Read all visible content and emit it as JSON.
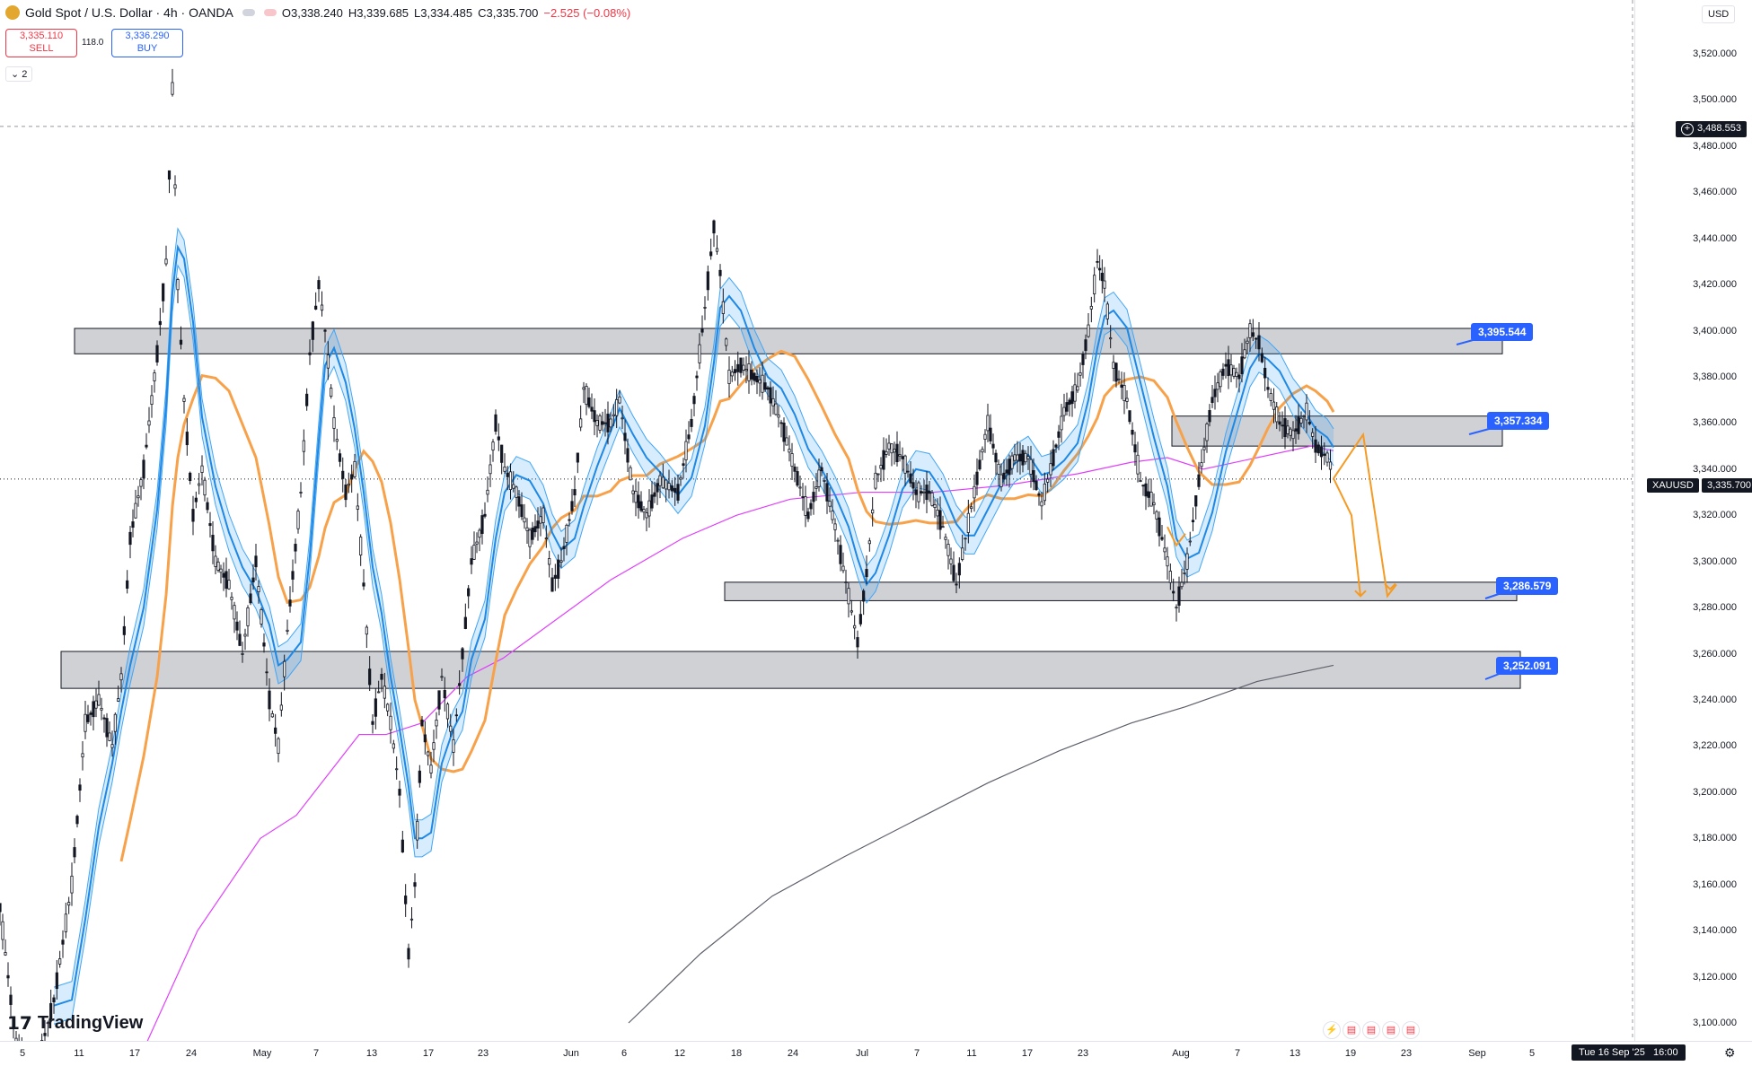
{
  "header": {
    "symbol": "Gold Spot / U.S. Dollar · 4h · OANDA",
    "open": "O3,338.240",
    "high": "H3,339.685",
    "low": "L3,334.485",
    "close": "C3,335.700",
    "change": "−2.525 (−0.08%)",
    "sell_price": "3,335.110",
    "sell_label": "SELL",
    "buy_price": "3,336.290",
    "buy_label": "BUY",
    "spread": "118.0",
    "collapse": "⌄ 2"
  },
  "price_axis": {
    "currency": "USD",
    "ticks": [
      "3,520.000",
      "3,500.000",
      "3,480.000",
      "3,460.000",
      "3,440.000",
      "3,420.000",
      "3,400.000",
      "3,380.000",
      "3,360.000",
      "3,340.000",
      "3,320.000",
      "3,300.000",
      "3,280.000",
      "3,260.000",
      "3,240.000",
      "3,220.000",
      "3,200.000",
      "3,180.000",
      "3,160.000",
      "3,140.000",
      "3,120.000",
      "3,100.000"
    ],
    "crosshair_price": "3,488.553",
    "symbol_tag": "XAUUSD",
    "current_price": "3,335.700"
  },
  "time_axis": {
    "ticks": [
      "5",
      "11",
      "17",
      "24",
      "May",
      "7",
      "13",
      "17",
      "23",
      "Jun",
      "6",
      "12",
      "18",
      "24",
      "Jul",
      "7",
      "11",
      "17",
      "23",
      "Aug",
      "7",
      "13",
      "19",
      "23",
      "Sep",
      "5"
    ],
    "cursor_date": "Tue 16 Sep '25",
    "cursor_time": "16:00"
  },
  "watermark": "TradingView",
  "chart_data": {
    "type": "line",
    "title": "Gold Spot / U.S. Dollar · 4h · OANDA",
    "ylim": [
      3100,
      3530
    ],
    "levels": [
      {
        "label": "3,395.544",
        "value": 3395.544
      },
      {
        "label": "3,357.334",
        "value": 3357.334
      },
      {
        "label": "3,286.579",
        "value": 3286.579
      },
      {
        "label": "3,252.091",
        "value": 3252.091
      }
    ],
    "zones": [
      {
        "low": 3390,
        "high": 3401
      },
      {
        "low": 3350,
        "high": 3363
      },
      {
        "low": 3283,
        "high": 3291
      },
      {
        "low": 3245,
        "high": 3261
      }
    ],
    "price_path": [
      [
        0,
        3150
      ],
      [
        18,
        3090
      ],
      [
        40,
        3080
      ],
      [
        60,
        3110
      ],
      [
        80,
        3160
      ],
      [
        95,
        3230
      ],
      [
        110,
        3240
      ],
      [
        125,
        3220
      ],
      [
        135,
        3250
      ],
      [
        145,
        3310
      ],
      [
        160,
        3340
      ],
      [
        175,
        3390
      ],
      [
        185,
        3430
      ],
      [
        192,
        3505
      ],
      [
        198,
        3420
      ],
      [
        205,
        3370
      ],
      [
        215,
        3320
      ],
      [
        225,
        3340
      ],
      [
        240,
        3300
      ],
      [
        255,
        3290
      ],
      [
        270,
        3260
      ],
      [
        285,
        3300
      ],
      [
        300,
        3240
      ],
      [
        310,
        3220
      ],
      [
        320,
        3270
      ],
      [
        335,
        3330
      ],
      [
        345,
        3390
      ],
      [
        355,
        3420
      ],
      [
        362,
        3400
      ],
      [
        372,
        3360
      ],
      [
        385,
        3330
      ],
      [
        395,
        3340
      ],
      [
        405,
        3290
      ],
      [
        415,
        3230
      ],
      [
        425,
        3250
      ],
      [
        435,
        3230
      ],
      [
        445,
        3200
      ],
      [
        455,
        3130
      ],
      [
        462,
        3160
      ],
      [
        470,
        3230
      ],
      [
        480,
        3210
      ],
      [
        492,
        3250
      ],
      [
        505,
        3220
      ],
      [
        515,
        3260
      ],
      [
        525,
        3300
      ],
      [
        540,
        3320
      ],
      [
        552,
        3360
      ],
      [
        562,
        3340
      ],
      [
        575,
        3330
      ],
      [
        590,
        3310
      ],
      [
        605,
        3320
      ],
      [
        615,
        3290
      ],
      [
        625,
        3300
      ],
      [
        640,
        3330
      ],
      [
        650,
        3375
      ],
      [
        665,
        3360
      ],
      [
        680,
        3360
      ],
      [
        690,
        3370
      ],
      [
        705,
        3330
      ],
      [
        720,
        3320
      ],
      [
        735,
        3335
      ],
      [
        755,
        3330
      ],
      [
        770,
        3360
      ],
      [
        785,
        3410
      ],
      [
        795,
        3445
      ],
      [
        802,
        3425
      ],
      [
        812,
        3380
      ],
      [
        825,
        3385
      ],
      [
        840,
        3380
      ],
      [
        855,
        3375
      ],
      [
        870,
        3360
      ],
      [
        885,
        3340
      ],
      [
        900,
        3320
      ],
      [
        915,
        3340
      ],
      [
        930,
        3315
      ],
      [
        945,
        3285
      ],
      [
        955,
        3265
      ],
      [
        965,
        3295
      ],
      [
        975,
        3335
      ],
      [
        990,
        3350
      ],
      [
        1005,
        3345
      ],
      [
        1020,
        3330
      ],
      [
        1035,
        3330
      ],
      [
        1050,
        3315
      ],
      [
        1065,
        3290
      ],
      [
        1075,
        3310
      ],
      [
        1085,
        3330
      ],
      [
        1100,
        3360
      ],
      [
        1115,
        3335
      ],
      [
        1130,
        3345
      ],
      [
        1145,
        3345
      ],
      [
        1160,
        3325
      ],
      [
        1170,
        3340
      ],
      [
        1185,
        3365
      ],
      [
        1200,
        3375
      ],
      [
        1212,
        3400
      ],
      [
        1222,
        3430
      ],
      [
        1230,
        3420
      ],
      [
        1240,
        3385
      ],
      [
        1255,
        3370
      ],
      [
        1270,
        3335
      ],
      [
        1285,
        3325
      ],
      [
        1300,
        3300
      ],
      [
        1310,
        3280
      ],
      [
        1322,
        3300
      ],
      [
        1335,
        3335
      ],
      [
        1350,
        3370
      ],
      [
        1365,
        3385
      ],
      [
        1380,
        3380
      ],
      [
        1392,
        3400
      ],
      [
        1402,
        3395
      ],
      [
        1412,
        3375
      ],
      [
        1425,
        3360
      ],
      [
        1440,
        3355
      ],
      [
        1455,
        3365
      ],
      [
        1465,
        3350
      ],
      [
        1478,
        3345
      ],
      [
        1485,
        3338
      ]
    ],
    "projection": [
      [
        1485,
        3336
      ],
      [
        1518,
        3355
      ],
      [
        1545,
        3285
      ],
      [
        1555,
        3290
      ]
    ],
    "projection2": [
      [
        1485,
        3336
      ],
      [
        1505,
        3320
      ],
      [
        1515,
        3285
      ]
    ]
  }
}
